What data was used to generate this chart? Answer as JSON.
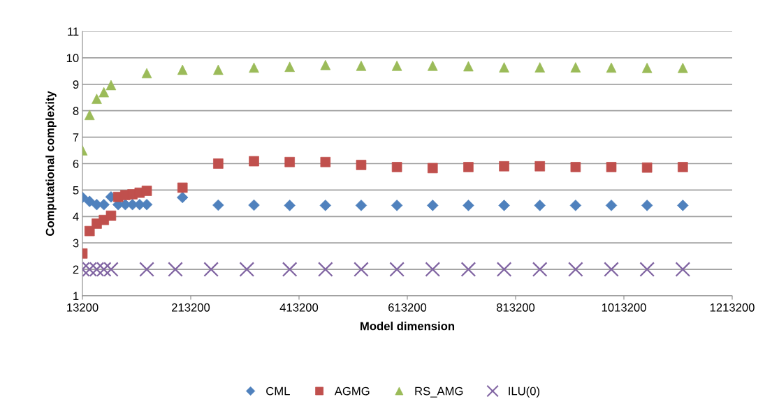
{
  "chart_data": {
    "type": "scatter",
    "xlabel": "Model dimension",
    "ylabel": "Computational complexity",
    "xlim": [
      13200,
      1213200
    ],
    "xticks": [
      13200,
      213200,
      413200,
      613200,
      813200,
      1013200,
      1213200
    ],
    "ylim": [
      1,
      11
    ],
    "yticks": [
      1,
      2,
      3,
      4,
      5,
      6,
      7,
      8,
      9,
      10,
      11
    ],
    "grid": "y",
    "legend": "bottom",
    "series": [
      {
        "name": "CML",
        "color": "#4f81bd",
        "marker": "diamond",
        "x": [
          13200,
          26400,
          39600,
          52800,
          66000,
          79200,
          92400,
          105600,
          118800,
          132000,
          198000,
          264000,
          330000,
          396000,
          462000,
          528000,
          594000,
          660000,
          726000,
          792000,
          858000,
          924000,
          990000,
          1056000,
          1122000
        ],
        "values": [
          4.72,
          4.57,
          4.45,
          4.45,
          4.74,
          4.45,
          4.45,
          4.45,
          4.45,
          4.45,
          4.72,
          4.43,
          4.43,
          4.42,
          4.42,
          4.42,
          4.42,
          4.42,
          4.42,
          4.42,
          4.42,
          4.42,
          4.42,
          4.42,
          4.42
        ]
      },
      {
        "name": "AGMG",
        "color": "#c0504d",
        "marker": "square",
        "x": [
          13200,
          26400,
          39600,
          52800,
          66000,
          79200,
          92400,
          105600,
          118800,
          132000,
          198000,
          264000,
          330000,
          396000,
          462000,
          528000,
          594000,
          660000,
          726000,
          792000,
          858000,
          924000,
          990000,
          1056000,
          1122000
        ],
        "values": [
          2.6,
          3.45,
          3.73,
          3.87,
          4.03,
          4.74,
          4.81,
          4.84,
          4.9,
          4.97,
          5.09,
          6.0,
          6.09,
          6.06,
          6.06,
          5.95,
          5.87,
          5.83,
          5.87,
          5.9,
          5.9,
          5.87,
          5.87,
          5.85,
          5.87
        ]
      },
      {
        "name": "RS_AMG",
        "color": "#9bbb59",
        "marker": "triangle",
        "x": [
          13200,
          26400,
          39600,
          52800,
          66000,
          132000,
          198000,
          264000,
          330000,
          396000,
          462000,
          528000,
          594000,
          660000,
          726000,
          792000,
          858000,
          924000,
          990000,
          1056000,
          1122000
        ],
        "values": [
          6.5,
          7.84,
          8.45,
          8.7,
          8.97,
          9.42,
          9.55,
          9.55,
          9.63,
          9.66,
          9.73,
          9.7,
          9.7,
          9.7,
          9.68,
          9.64,
          9.64,
          9.64,
          9.63,
          9.62,
          9.62
        ]
      },
      {
        "name": "ILU(0)",
        "color": "#8064a2",
        "marker": "cross",
        "x": [
          13200,
          26400,
          39600,
          52800,
          66000,
          132000,
          184800,
          250800,
          316800,
          396000,
          462000,
          528000,
          594000,
          660000,
          726000,
          792000,
          858000,
          924000,
          990000,
          1056000,
          1122000
        ],
        "values": [
          2,
          2,
          2,
          2,
          2,
          2,
          2,
          2,
          2,
          2,
          2,
          2,
          2,
          2,
          2,
          2,
          2,
          2,
          2,
          2,
          2
        ]
      }
    ]
  }
}
